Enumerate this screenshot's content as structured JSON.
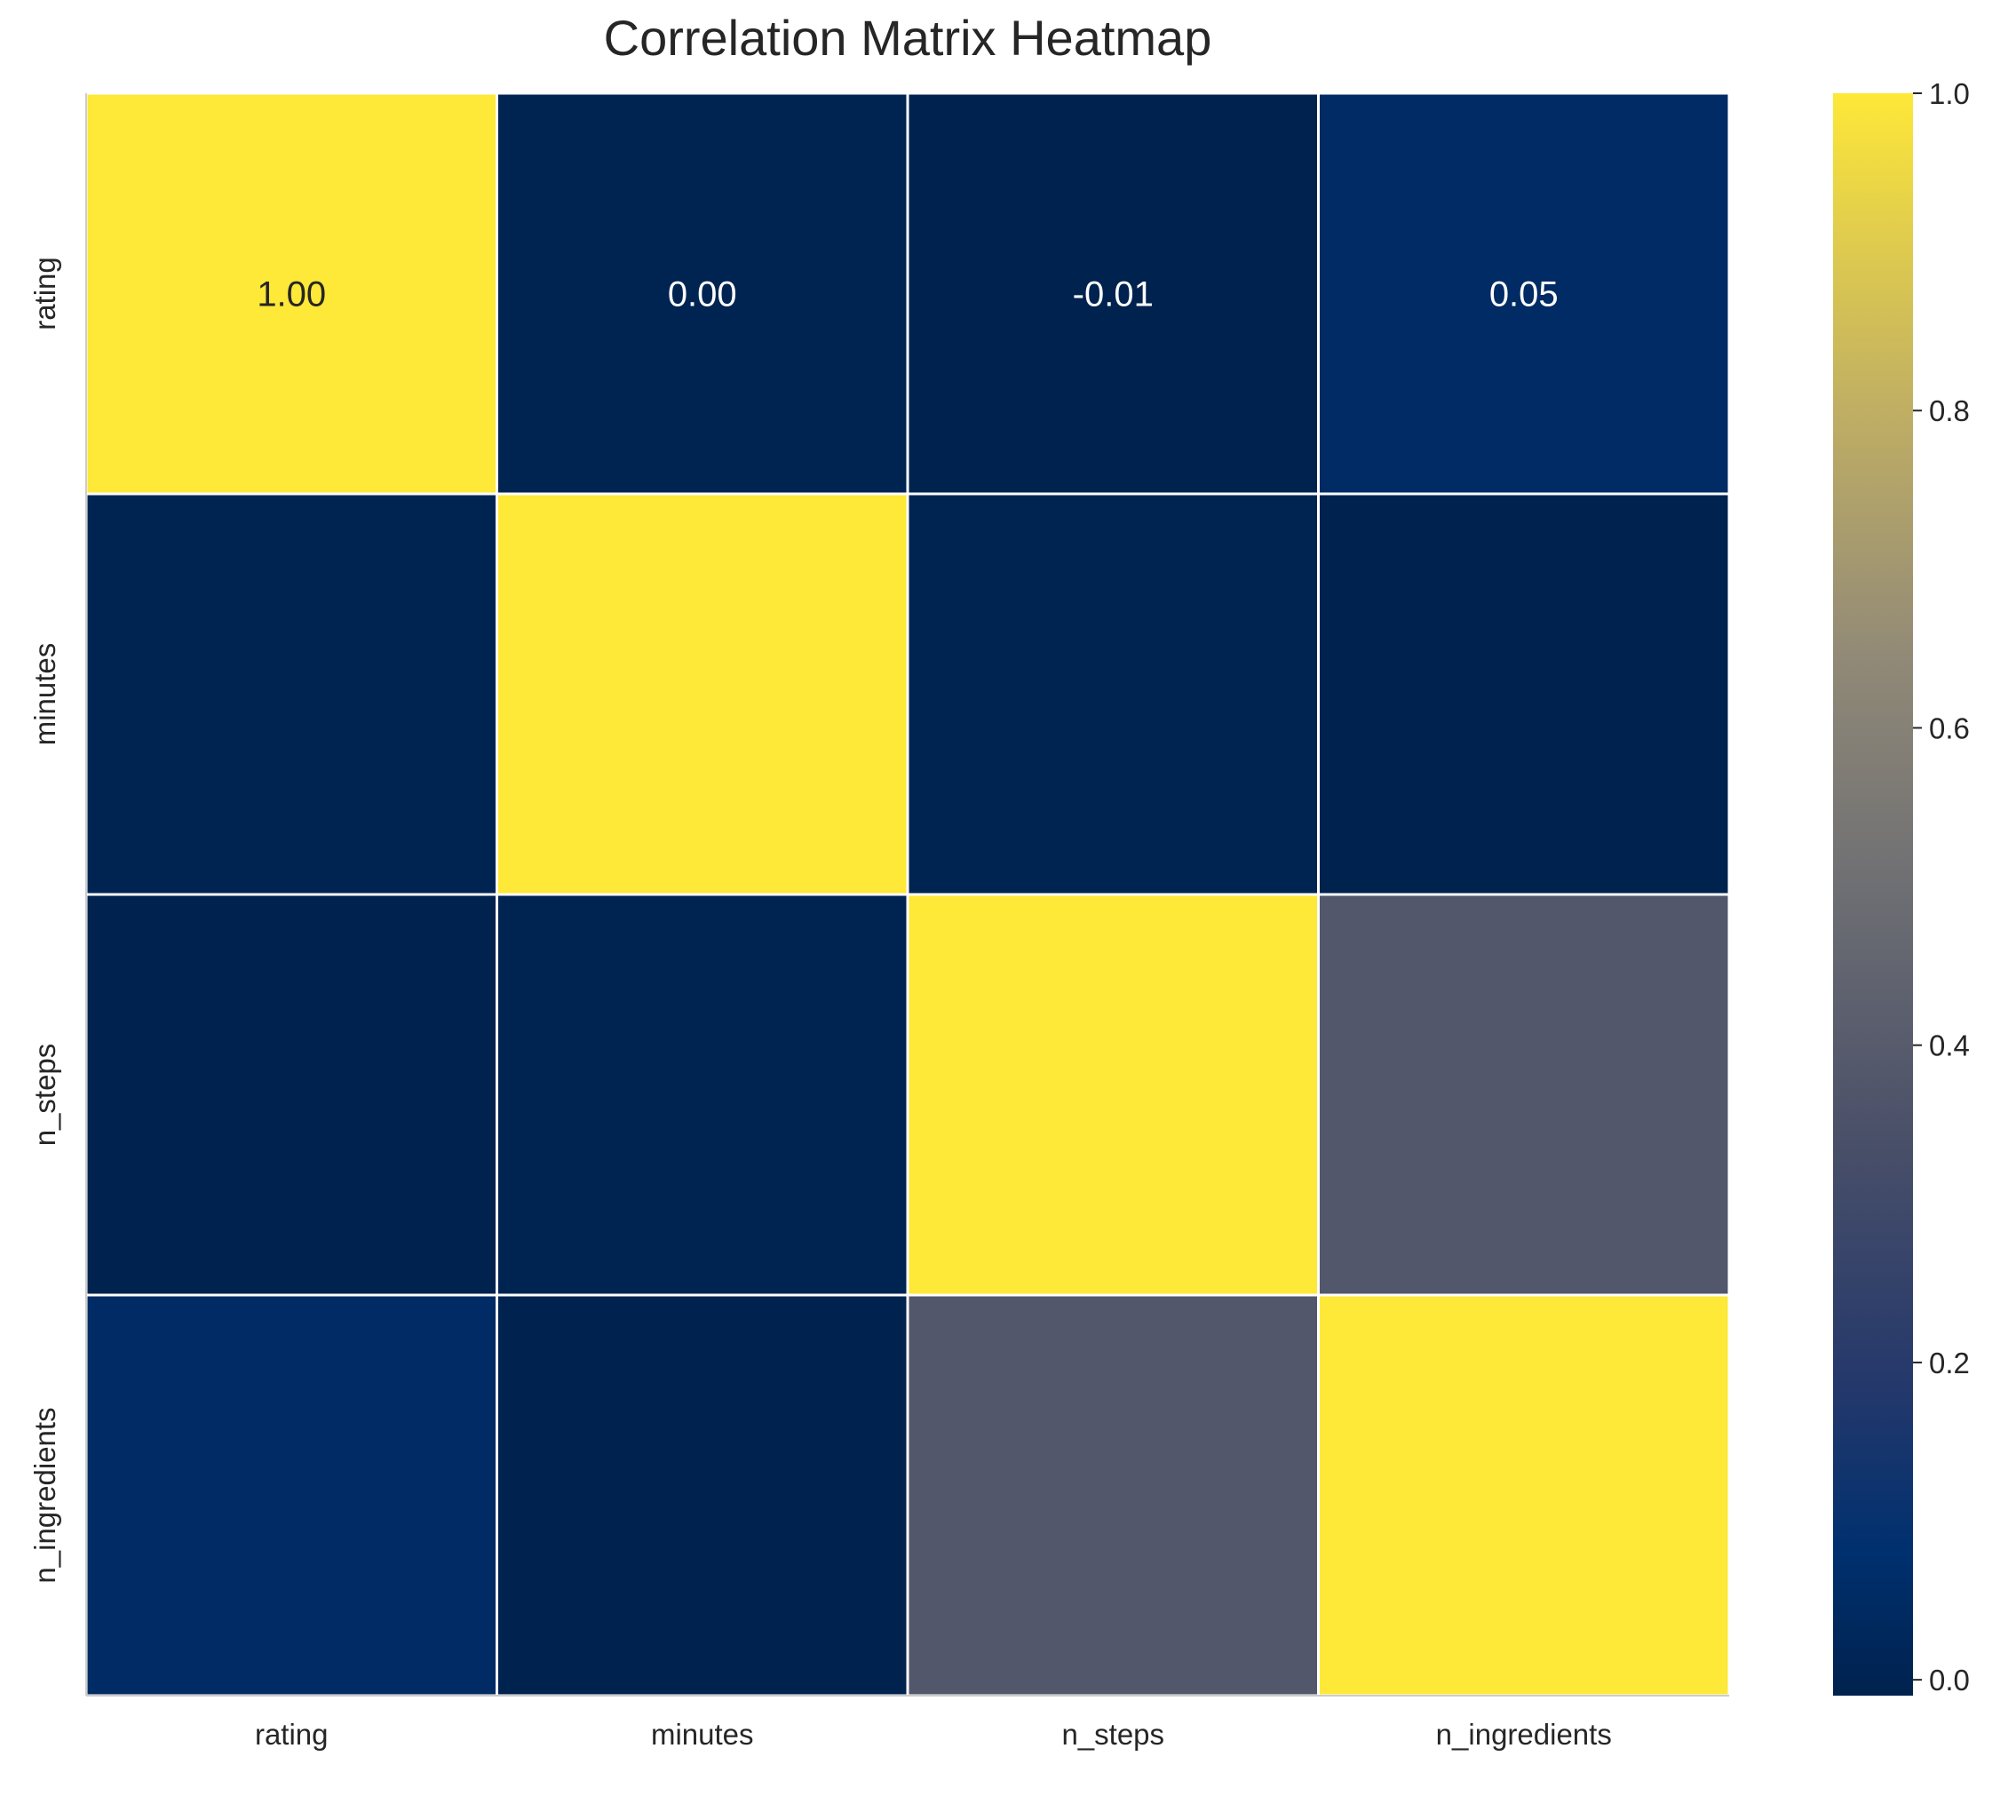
{
  "chart_data": {
    "type": "heatmap",
    "title": "Correlation Matrix Heatmap",
    "xlabel": "",
    "ylabel": "",
    "row_labels": [
      "rating",
      "minutes",
      "n_steps",
      "n_ingredients"
    ],
    "col_labels": [
      "rating",
      "minutes",
      "n_steps",
      "n_ingredients"
    ],
    "values": [
      [
        1.0,
        0.0,
        -0.01,
        0.05
      ],
      [
        0.0,
        1.0,
        0.0,
        -0.01
      ],
      [
        -0.01,
        0.0,
        1.0,
        0.38
      ],
      [
        0.05,
        -0.01,
        0.38,
        1.0
      ]
    ],
    "annotations": [
      [
        "1.00",
        "0.00",
        "-0.01",
        "0.05"
      ],
      [
        "",
        "",
        "",
        ""
      ],
      [
        "",
        "",
        "",
        ""
      ],
      [
        "",
        "",
        "",
        ""
      ]
    ],
    "colormap": "cividis",
    "vmin": -0.01,
    "vmax": 1.0,
    "colorbar_ticks": [
      "0.0",
      "0.2",
      "0.4",
      "0.6",
      "0.8",
      "1.0"
    ],
    "colorbar_tick_values": [
      0.0,
      0.2,
      0.4,
      0.6,
      0.8,
      1.0
    ],
    "grid": false,
    "cell_line_color": "#ffffff"
  }
}
